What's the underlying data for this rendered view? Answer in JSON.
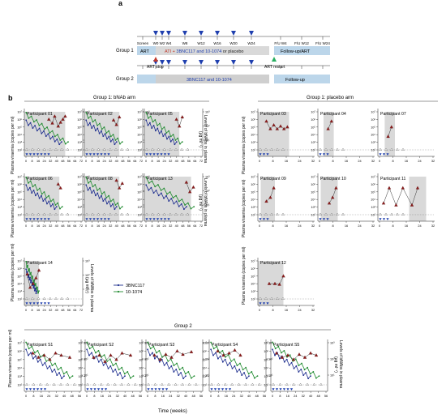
{
  "panel_a": {
    "label": "a",
    "timeline_ticks": [
      "Screen",
      "W0",
      "W2",
      "W4",
      "W8",
      "W12",
      "W16",
      "W20",
      "W24",
      "F/U W4",
      "F/U W12",
      "F/U W24"
    ],
    "group1": {
      "label": "Group 1",
      "art_box": "ART",
      "ati_prefix": "ATI + ",
      "ati_main": "3BNC117 and 10-1074",
      "ati_suffix": " or placebo",
      "followup_box": "Follow-up/ART",
      "art_stop": "ART stop",
      "art_restart": "ART restart"
    },
    "group2": {
      "label": "Group 2",
      "main_box": "3BNC117 and 10-1074",
      "followup_box": "Follow-up"
    }
  },
  "panel_b": {
    "label": "b",
    "group1_bnab_title": "Group 1: bNAb arm",
    "group1_placebo_title": "Group 1: placebo arm",
    "group2_title": "Group 2",
    "y_left_label": "Plasma viraemia (copies per ml)",
    "y_right_label_1": "Levels of bNAbs in plasma",
    "y_right_label_2": "(µg ml⁻¹)",
    "x_label": "Time (weeks)",
    "legend": [
      {
        "name": "3BNC117",
        "color": "#1f2f8f"
      },
      {
        "name": "10-1074",
        "color": "#1e8a2e"
      }
    ],
    "colors": {
      "shade": "#d9d9d9",
      "viraemia": "#8b1a1a",
      "art": "#bcd6ea",
      "ati": "#d9d9d9",
      "stop_marker": "#c0392b",
      "restart_marker": "#27ae60",
      "dose_marker": "#1f3fae"
    },
    "participants": {
      "p01": "Participant 01",
      "p02": "Participant 02",
      "p05": "Participant 05",
      "p06": "Participant 06",
      "p08": "Participant 08",
      "p13": "Participant 13",
      "p14": "Participant 14",
      "p03": "Participant 03",
      "p04": "Participant 04",
      "p07": "Participant 07",
      "p09": "Participant 09",
      "p10": "Participant 10",
      "p11": "Participant 11",
      "p12": "Participant 12",
      "s1": "Participant S1",
      "s2": "Participant S2",
      "s3": "Participant S3",
      "s4": "Participant S4",
      "s5": "Participant S5"
    },
    "x_ticks_bnab": [
      "0",
      "8",
      "16",
      "24",
      "32",
      "40",
      "48",
      "56",
      "64",
      "72"
    ],
    "x_ticks_placebo": [
      "0",
      "8",
      "16",
      "24",
      "32"
    ],
    "x_ticks_group2": [
      "0",
      "8",
      "16",
      "24",
      "32",
      "40",
      "48",
      "56"
    ],
    "y_ticks_left": [
      "10²",
      "10³",
      "10⁴",
      "10⁵",
      "10⁶",
      "10⁷"
    ],
    "y_ticks_right": [
      "10¹",
      "10²",
      "10³"
    ]
  }
}
